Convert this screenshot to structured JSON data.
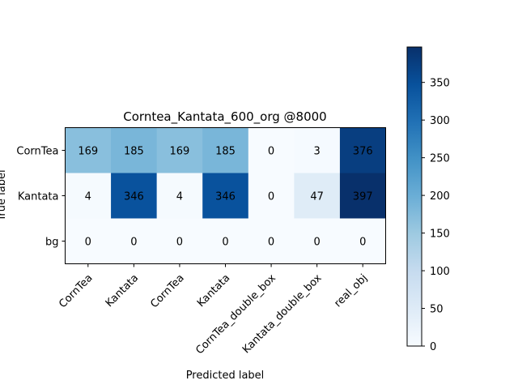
{
  "chart_data": {
    "type": "heatmap",
    "title": "Corntea_Kantata_600_org @8000",
    "xlabel": "Predicted label",
    "ylabel": "True label",
    "x_categories": [
      "CornTea",
      "Kantata",
      "CornTea",
      "Kantata",
      "CornTea_double_box",
      "Kantata_double_box",
      "real_obj"
    ],
    "y_categories": [
      "CornTea",
      "Kantata",
      "bg"
    ],
    "values": [
      [
        169,
        185,
        169,
        185,
        0,
        3,
        376
      ],
      [
        4,
        346,
        4,
        346,
        0,
        47,
        397
      ],
      [
        0,
        0,
        0,
        0,
        0,
        0,
        0
      ]
    ],
    "colormap": "Blues",
    "colorbar": {
      "min": 0,
      "max": 397,
      "ticks": [
        0,
        50,
        100,
        150,
        200,
        250,
        300,
        350
      ]
    }
  }
}
